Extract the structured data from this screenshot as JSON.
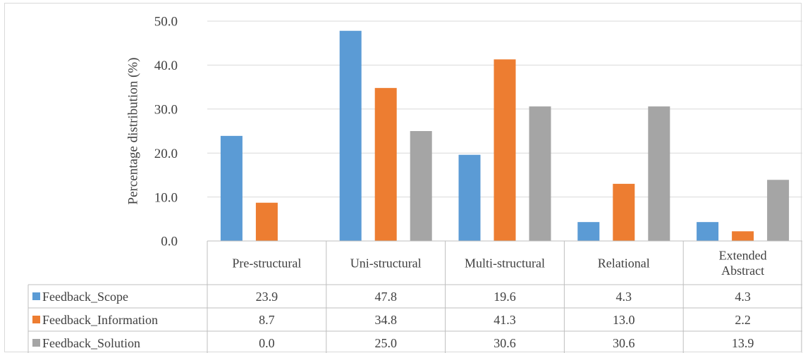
{
  "chart_data": {
    "type": "bar",
    "title": "",
    "xlabel": "",
    "ylabel": "Percentage distribution (%)",
    "ylim": [
      0,
      50
    ],
    "yticks": [
      "0.0",
      "10.0",
      "20.0",
      "30.0",
      "40.0",
      "50.0"
    ],
    "grid": true,
    "legend": "data-table-left",
    "categories": [
      "Pre-structural",
      "Uni-structural",
      "Multi-structural",
      "Relational",
      "Extended Abstract"
    ],
    "series": [
      {
        "name": "Feedback_Scope",
        "color": "#5b9bd5",
        "values": [
          23.9,
          47.8,
          19.6,
          4.3,
          4.3
        ],
        "labels": [
          "23.9",
          "47.8",
          "19.6",
          "4.3",
          "4.3"
        ]
      },
      {
        "name": "Feedback_Information",
        "color": "#ed7d31",
        "values": [
          8.7,
          34.8,
          41.3,
          13.0,
          2.2
        ],
        "labels": [
          "8.7",
          "34.8",
          "41.3",
          "13.0",
          "2.2"
        ]
      },
      {
        "name": "Feedback_Solution",
        "color": "#a5a5a5",
        "values": [
          0.0,
          25.0,
          30.6,
          30.6,
          13.9
        ],
        "labels": [
          "0.0",
          "25.0",
          "30.6",
          "30.6",
          "13.9"
        ]
      }
    ]
  }
}
